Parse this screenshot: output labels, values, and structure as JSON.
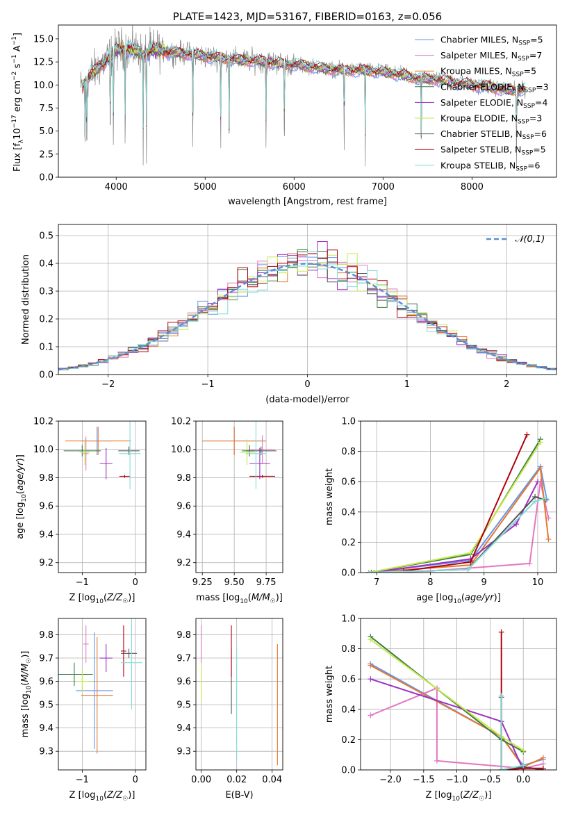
{
  "colors": {
    "chabrier_miles": "#6495ED",
    "salpeter_miles": "#E377C2",
    "kroupa_miles": "#E6772E",
    "chabrier_elodie": "#3A7D44",
    "salpeter_elodie": "#9B30C0",
    "kroupa_elodie": "#C7E84A",
    "chabrier_stelib": "#555555",
    "salpeter_stelib": "#B00010",
    "kroupa_stelib": "#7FDCD8",
    "gauss": "#5B8ED6",
    "raw": "#888888"
  },
  "chart_data": [
    {
      "id": "spectrum",
      "type": "line",
      "title": "PLATE=1423, MJD=53167, FIBERID=0163, z=0.056",
      "xlabel": "wavelength [Angstrom, rest frame]",
      "ylabel_parts": [
        "Flux [f",
        "λ",
        "10",
        "−17",
        " erg cm",
        "−2",
        " s",
        "−1",
        " A",
        "−1",
        "]"
      ],
      "xlim": [
        3350,
        8950
      ],
      "ylim": [
        0,
        16.5
      ],
      "xticks": [
        4000,
        5000,
        6000,
        7000,
        8000
      ],
      "yticks": [
        0.0,
        2.5,
        5.0,
        7.5,
        10.0,
        12.5,
        15.0
      ],
      "ytick_labels": [
        "0.0",
        "2.5",
        "5.0",
        "7.5",
        "10.0",
        "12.5",
        "15.0"
      ],
      "grid": false,
      "legend": {
        "placement": "top-right",
        "entries": [
          {
            "label": "Chabrier MILES, N",
            "n": "5",
            "color": "chabrier_miles"
          },
          {
            "label": "Salpeter MILES, N",
            "n": "7",
            "color": "salpeter_miles"
          },
          {
            "label": "Kroupa MILES, N",
            "n": "5",
            "color": "kroupa_miles"
          },
          {
            "label": "Chabrier ELODIE, N",
            "n": "3",
            "color": "chabrier_elodie"
          },
          {
            "label": "Salpeter ELODIE, N",
            "n": "4",
            "color": "salpeter_elodie"
          },
          {
            "label": "Kroupa ELODIE, N",
            "n": "3",
            "color": "kroupa_elodie"
          },
          {
            "label": "Chabrier STELIB, N",
            "n": "6",
            "color": "chabrier_stelib"
          },
          {
            "label": "Salpeter STELIB, N",
            "n": "5",
            "color": "salpeter_stelib"
          },
          {
            "label": "Kroupa STELIB, N",
            "n": "6",
            "color": "kroupa_stelib"
          }
        ],
        "subscript": "SSP"
      },
      "continuum": {
        "x": [
          3600,
          3700,
          3800,
          3900,
          4000,
          4100,
          4200,
          4300,
          4400,
          4500,
          4600,
          4800,
          5000,
          5200,
          5400,
          5600,
          5800,
          6000,
          6200,
          6400,
          6600,
          6800,
          7000,
          7200,
          7400,
          7600,
          7800,
          8000,
          8200,
          8400,
          8600
        ],
        "y": [
          9.5,
          11.0,
          11.9,
          12.8,
          13.8,
          14.0,
          13.8,
          13.3,
          13.7,
          13.8,
          13.6,
          13.4,
          13.1,
          12.9,
          12.7,
          12.6,
          12.4,
          12.2,
          12.0,
          11.7,
          11.6,
          11.6,
          11.4,
          11.1,
          10.7,
          10.6,
          10.3,
          10.0,
          9.8,
          9.4,
          9.5
        ]
      },
      "absorption_lines": [
        3650,
        3670,
        3934,
        3969,
        4101,
        4304,
        4340,
        4861,
        5175,
        5270,
        5685,
        5890,
        6563,
        6800,
        7430,
        8500
      ]
    },
    {
      "id": "residuals",
      "type": "histogram",
      "xlabel": "(data-model)/error",
      "ylabel": "Normed distribution",
      "xlim": [
        -2.5,
        2.5
      ],
      "ylim": [
        0,
        0.54
      ],
      "xticks": [
        -2,
        -1,
        0,
        1,
        2
      ],
      "xtick_labels": [
        "−2",
        "−1",
        "0",
        "1",
        "2"
      ],
      "yticks": [
        0.0,
        0.1,
        0.2,
        0.3,
        0.4,
        0.5
      ],
      "ytick_labels": [
        "0.0",
        "0.1",
        "0.2",
        "0.3",
        "0.4",
        "0.5"
      ],
      "grid": true,
      "legend": {
        "placement": "top-right",
        "label": "𝒩(0,1)"
      },
      "bin_width": 0.1
    },
    {
      "id": "age-vs-Z",
      "type": "scatter",
      "xlabel": "Z [log10(Z/Z☉)]",
      "ylabel": "age [log10(age/yr)]",
      "xlim": [
        -1.45,
        0.2
      ],
      "ylim": [
        9.13,
        10.2
      ],
      "xticks": [
        -1,
        0
      ],
      "xtick_labels": [
        "−1",
        "0"
      ],
      "yticks": [
        9.2,
        9.4,
        9.6,
        9.8,
        10.0,
        10.2
      ],
      "ytick_labels": [
        "9.2",
        "9.4",
        "9.6",
        "9.8",
        "10.0",
        "10.2"
      ],
      "grid": true,
      "points": [
        {
          "color": "chabrier_miles",
          "x": -0.72,
          "y": 10.06,
          "xerr": 0.28,
          "yerr": 0.1
        },
        {
          "color": "salpeter_miles",
          "x": -0.93,
          "y": 9.97,
          "xerr": 0.05,
          "yerr": 0.12
        },
        {
          "color": "kroupa_miles",
          "x": -0.7,
          "y": 10.06,
          "xerr": 0.62,
          "yerr": 0.1
        },
        {
          "color": "chabrier_elodie",
          "x": -1.0,
          "y": 9.99,
          "xerr": 0.35,
          "yerr": 0.04
        },
        {
          "color": "salpeter_elodie",
          "x": -0.55,
          "y": 9.9,
          "xerr": 0.12,
          "yerr": 0.11
        },
        {
          "color": "kroupa_elodie",
          "x": -0.95,
          "y": 9.98,
          "xerr": 0.1,
          "yerr": 0.09
        },
        {
          "color": "chabrier_stelib",
          "x": -0.12,
          "y": 9.99,
          "xerr": 0.2,
          "yerr": 0.03
        },
        {
          "color": "salpeter_stelib",
          "x": -0.2,
          "y": 9.81,
          "xerr": 0.1,
          "yerr": 0.01
        },
        {
          "color": "kroupa_stelib",
          "x": -0.1,
          "y": 9.97,
          "xerr": 0.2,
          "yerr": 0.25
        }
      ]
    },
    {
      "id": "age-vs-mass",
      "type": "scatter",
      "xlabel": "mass [log10(M/M☉)]",
      "ylabel": "",
      "xlim": [
        9.2,
        9.88
      ],
      "ylim": [
        9.13,
        10.2
      ],
      "xticks": [
        9.25,
        9.5,
        9.75
      ],
      "xtick_labels": [
        "9.25",
        "9.50",
        "9.75"
      ],
      "yticks": [
        9.2,
        9.4,
        9.6,
        9.8,
        10.0,
        10.2
      ],
      "ytick_labels": [
        "9.2",
        "9.4",
        "9.6",
        "9.8",
        "10.0",
        "10.2"
      ],
      "grid": true,
      "points": [
        {
          "color": "chabrier_miles",
          "x": 9.5,
          "y": 10.06,
          "xerr": 0.25,
          "yerr": 0.1
        },
        {
          "color": "salpeter_miles",
          "x": 9.72,
          "y": 10.0,
          "xerr": 0.1,
          "yerr": 0.1
        },
        {
          "color": "kroupa_miles",
          "x": 9.5,
          "y": 10.06,
          "xerr": 0.25,
          "yerr": 0.1
        },
        {
          "color": "chabrier_elodie",
          "x": 9.62,
          "y": 9.99,
          "xerr": 0.06,
          "yerr": 0.04
        },
        {
          "color": "salpeter_elodie",
          "x": 9.7,
          "y": 9.9,
          "xerr": 0.08,
          "yerr": 0.11
        },
        {
          "color": "kroupa_elodie",
          "x": 9.6,
          "y": 9.98,
          "xerr": 0.06,
          "yerr": 0.09
        },
        {
          "color": "chabrier_stelib",
          "x": 9.71,
          "y": 9.99,
          "xerr": 0.12,
          "yerr": 0.03
        },
        {
          "color": "salpeter_stelib",
          "x": 9.72,
          "y": 9.81,
          "xerr": 0.1,
          "yerr": 0.01
        },
        {
          "color": "kroupa_stelib",
          "x": 9.67,
          "y": 9.97,
          "xerr": 0.08,
          "yerr": 0.25
        }
      ]
    },
    {
      "id": "massweight-vs-age",
      "type": "line",
      "xlabel": "age [log10(age/yr)]",
      "ylabel": "mass weight",
      "xlim": [
        6.7,
        10.35
      ],
      "ylim": [
        0,
        1.0
      ],
      "xticks": [
        7,
        8,
        9,
        10
      ],
      "xtick_labels": [
        "7",
        "8",
        "9",
        "10"
      ],
      "yticks": [
        0.0,
        0.2,
        0.4,
        0.6,
        0.8,
        1.0
      ],
      "ytick_labels": [
        "0.0",
        "0.2",
        "0.4",
        "0.6",
        "0.8",
        "1.0"
      ],
      "grid": true,
      "series": [
        {
          "color": "chabrier_miles",
          "x": [
            6.85,
            8.75,
            10.05,
            10.17
          ],
          "y": [
            0.0,
            0.08,
            0.7,
            0.48
          ]
        },
        {
          "color": "salpeter_miles",
          "x": [
            6.95,
            8.0,
            9.85,
            10.05,
            10.2
          ],
          "y": [
            0.0,
            0.01,
            0.06,
            0.6,
            0.36
          ]
        },
        {
          "color": "kroupa_miles",
          "x": [
            6.85,
            8.75,
            10.05,
            10.2
          ],
          "y": [
            0.0,
            0.05,
            0.69,
            0.22
          ]
        },
        {
          "color": "chabrier_elodie",
          "x": [
            6.85,
            8.75,
            10.05
          ],
          "y": [
            0.0,
            0.12,
            0.88
          ]
        },
        {
          "color": "salpeter_elodie",
          "x": [
            6.9,
            8.75,
            9.6,
            10.0
          ],
          "y": [
            0.0,
            0.09,
            0.32,
            0.6
          ]
        },
        {
          "color": "kroupa_elodie",
          "x": [
            6.85,
            8.75,
            10.05
          ],
          "y": [
            0.0,
            0.13,
            0.86
          ]
        },
        {
          "color": "chabrier_stelib",
          "x": [
            6.85,
            8.7,
            9.95,
            10.15
          ],
          "y": [
            0.0,
            0.02,
            0.5,
            0.48
          ]
        },
        {
          "color": "salpeter_stelib",
          "x": [
            7.5,
            8.75,
            9.8
          ],
          "y": [
            0.01,
            0.07,
            0.91
          ]
        },
        {
          "color": "kroupa_stelib",
          "x": [
            6.85,
            8.7,
            9.95,
            10.15
          ],
          "y": [
            0.0,
            0.02,
            0.47,
            0.49
          ]
        }
      ]
    },
    {
      "id": "mass-vs-Z",
      "type": "scatter",
      "xlabel": "Z [log10(Z/Z☉)]",
      "ylabel": "mass [log10(M/M☉)]",
      "xlim": [
        -1.45,
        0.2
      ],
      "ylim": [
        9.22,
        9.87
      ],
      "xticks": [
        -1,
        0
      ],
      "xtick_labels": [
        "−1",
        "0"
      ],
      "yticks": [
        9.3,
        9.4,
        9.5,
        9.6,
        9.7,
        9.8
      ],
      "ytick_labels": [
        "9.3",
        "9.4",
        "9.5",
        "9.6",
        "9.7",
        "9.8"
      ],
      "grid": true,
      "points": [
        {
          "color": "chabrier_miles",
          "x": -0.77,
          "y": 9.56,
          "xerr": 0.35,
          "yerr": 0.25
        },
        {
          "color": "salpeter_miles",
          "x": -0.93,
          "y": 9.76,
          "xerr": 0.05,
          "yerr": 0.08
        },
        {
          "color": "kroupa_miles",
          "x": -0.72,
          "y": 9.54,
          "xerr": 0.3,
          "yerr": 0.25
        },
        {
          "color": "chabrier_elodie",
          "x": -1.15,
          "y": 9.63,
          "xerr": 0.35,
          "yerr": 0.05
        },
        {
          "color": "salpeter_elodie",
          "x": -0.55,
          "y": 9.7,
          "xerr": 0.12,
          "yerr": 0.06
        },
        {
          "color": "kroupa_elodie",
          "x": -1.0,
          "y": 9.6,
          "xerr": 0.12,
          "yerr": 0.05
        },
        {
          "color": "chabrier_stelib",
          "x": -0.12,
          "y": 9.72,
          "xerr": 0.15,
          "yerr": 0.02
        },
        {
          "color": "salpeter_stelib",
          "x": -0.22,
          "y": 9.73,
          "xerr": 0.05,
          "yerr": 0.11
        },
        {
          "color": "kroupa_stelib",
          "x": -0.07,
          "y": 9.68,
          "xerr": 0.2,
          "yerr": 0.2
        }
      ]
    },
    {
      "id": "mass-vs-ebv",
      "type": "scatter",
      "xlabel": "E(B-V)",
      "ylabel": "",
      "xlim": [
        -0.003,
        0.046
      ],
      "ylim": [
        9.22,
        9.87
      ],
      "xticks": [
        0.0,
        0.02,
        0.04
      ],
      "xtick_labels": [
        "0.00",
        "0.02",
        "0.04"
      ],
      "yticks": [
        9.3,
        9.4,
        9.5,
        9.6,
        9.7,
        9.8
      ],
      "ytick_labels": [
        "9.3",
        "9.4",
        "9.5",
        "9.6",
        "9.7",
        "9.8"
      ],
      "grid": true,
      "points": [
        {
          "color": "salpeter_miles",
          "x": 0.0,
          "y": 9.76,
          "xerr": 0,
          "yerr": 0.08
        },
        {
          "color": "kroupa_elodie",
          "x": 0.0,
          "y": 9.6,
          "xerr": 0,
          "yerr": 0.08
        },
        {
          "color": "chabrier_stelib",
          "x": 0.017,
          "y": 9.6,
          "xerr": 0,
          "yerr": 0.14
        },
        {
          "color": "salpeter_stelib",
          "x": 0.017,
          "y": 9.73,
          "xerr": 0,
          "yerr": 0.11
        },
        {
          "color": "kroupa_stelib",
          "x": 0.02,
          "y": 9.5,
          "xerr": 0,
          "yerr": 0.24
        },
        {
          "color": "kroupa_miles",
          "x": 0.043,
          "y": 9.5,
          "xerr": 0,
          "yerr": 0.26
        }
      ]
    },
    {
      "id": "massweight-vs-Z",
      "type": "line",
      "xlabel": "Z [log10(Z/Z☉)]",
      "ylabel": "mass weight",
      "xlim": [
        -2.45,
        0.5
      ],
      "ylim": [
        0,
        1.0
      ],
      "xticks": [
        -2.0,
        -1.5,
        -1.0,
        -0.5,
        0.0
      ],
      "xtick_labels": [
        "−2.0",
        "−1.5",
        "−1.0",
        "−0.5",
        "0.0"
      ],
      "yticks": [
        0.0,
        0.2,
        0.4,
        0.6,
        0.8,
        1.0
      ],
      "ytick_labels": [
        "0.0",
        "0.2",
        "0.4",
        "0.6",
        "0.8",
        "1.0"
      ],
      "grid": true,
      "series": [
        {
          "color": "chabrier_miles",
          "x": [
            -2.3,
            -0.33,
            0.0,
            0.3
          ],
          "y": [
            0.7,
            0.22,
            0.03,
            0.07
          ]
        },
        {
          "color": "salpeter_miles",
          "x": [
            -2.3,
            -1.3,
            -1.3,
            0.0,
            0.3
          ],
          "y": [
            0.36,
            0.54,
            0.06,
            0.01,
            0.04
          ]
        },
        {
          "color": "kroupa_miles",
          "x": [
            -2.3,
            -0.33,
            0.0,
            0.3
          ],
          "y": [
            0.69,
            0.22,
            0.02,
            0.08
          ]
        },
        {
          "color": "chabrier_elodie",
          "x": [
            -2.3,
            -0.33,
            0.0
          ],
          "y": [
            0.88,
            0.2,
            0.12
          ]
        },
        {
          "color": "salpeter_elodie",
          "x": [
            -2.3,
            -0.33,
            0.0
          ],
          "y": [
            0.6,
            0.32,
            0.0
          ]
        },
        {
          "color": "kroupa_elodie",
          "x": [
            -2.3,
            -0.33,
            0.0
          ],
          "y": [
            0.86,
            0.22,
            0.13
          ]
        },
        {
          "color": "chabrier_stelib",
          "x": [
            -0.33,
            -0.33,
            0.0,
            0.3
          ],
          "y": [
            0.48,
            0.0,
            0.02,
            0.0
          ]
        },
        {
          "color": "salpeter_stelib",
          "x": [
            -0.33,
            -0.33,
            0.0,
            0.3
          ],
          "y": [
            0.91,
            0.0,
            0.01,
            0.01
          ]
        },
        {
          "color": "kroupa_stelib",
          "x": [
            -0.33,
            -0.33,
            0.0
          ],
          "y": [
            0.49,
            0.0,
            0.03
          ]
        }
      ]
    }
  ]
}
